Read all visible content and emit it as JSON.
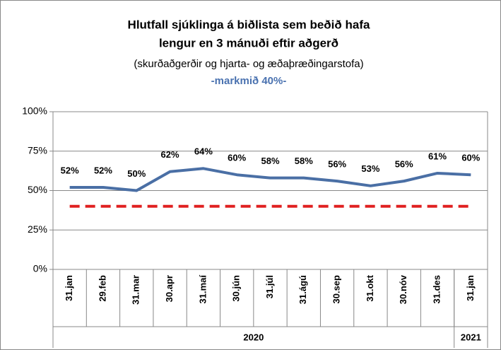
{
  "chart_data": {
    "type": "line",
    "title": [
      "Hlutfall sjúklinga á biðlista sem beðið hafa",
      "lengur en 3 mánuði eftir aðgerð"
    ],
    "subtitle": "(skurðaðgerðir og hjarta- og æðaþræðingarstofa)",
    "categories": [
      "31.jan",
      "29.feb",
      "31.mar",
      "30.apr",
      "31.maí",
      "30.jún",
      "31.júl",
      "31.ágú",
      "30.sep",
      "31.okt",
      "30.nóv",
      "31.des",
      "31.jan"
    ],
    "year_groups": [
      {
        "label": "2020",
        "span": 12
      },
      {
        "label": "2021",
        "span": 1
      }
    ],
    "series": [
      {
        "name": "Hlutfall",
        "color": "#4a6fa5",
        "values": [
          52,
          52,
          50,
          62,
          64,
          60,
          58,
          58,
          56,
          53,
          56,
          61,
          60
        ],
        "value_labels": [
          "52%",
          "52%",
          "50%",
          "62%",
          "64%",
          "60%",
          "58%",
          "58%",
          "56%",
          "53%",
          "56%",
          "61%",
          "60%"
        ]
      }
    ],
    "target": {
      "value": 40,
      "label": "-markmið 40%-",
      "color": "#e02020"
    },
    "ylim": [
      0,
      100
    ],
    "yticks": [
      {
        "value": 0,
        "label": "0%"
      },
      {
        "value": 25,
        "label": "25%"
      },
      {
        "value": 50,
        "label": "50%"
      },
      {
        "value": 75,
        "label": "75%"
      },
      {
        "value": 100,
        "label": "100%"
      }
    ],
    "grid": true
  }
}
